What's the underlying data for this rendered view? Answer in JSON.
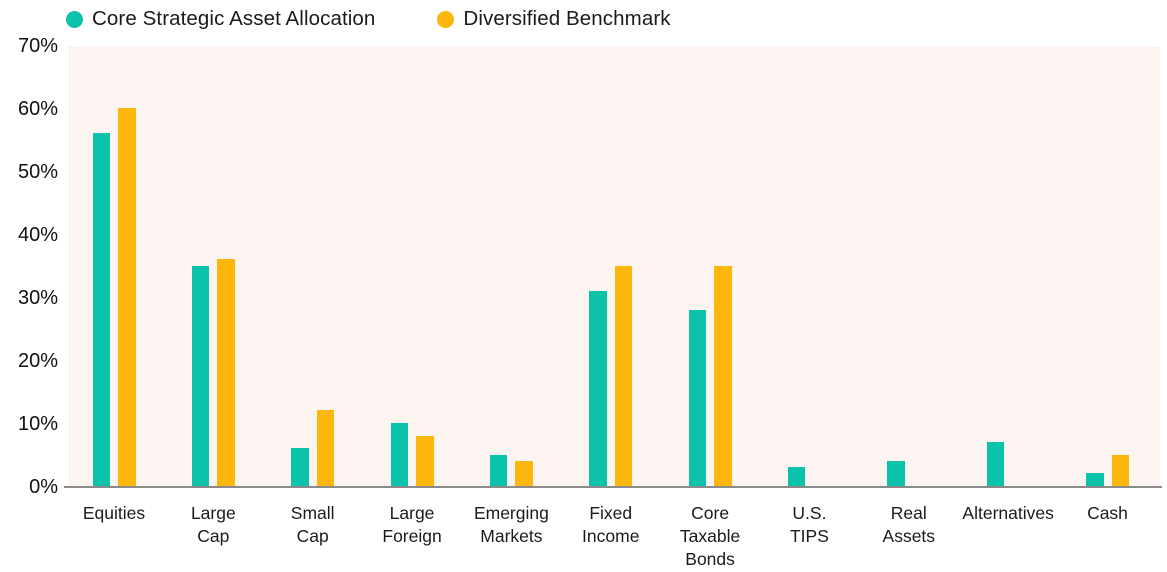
{
  "chart_data": {
    "type": "bar",
    "title": "",
    "xlabel": "",
    "ylabel": "",
    "categories": [
      "Equities",
      "Large\nCap",
      "Small\nCap",
      "Large\nForeign",
      "Emerging\nMarkets",
      "Fixed\nIncome",
      "Core\nTaxable\nBonds",
      "U.S.\nTIPS",
      "Real\nAssets",
      "Alternatives",
      "Cash"
    ],
    "series": [
      {
        "name": "Core Strategic Asset Allocation",
        "color": "#0bc2aa",
        "values": [
          56,
          35,
          6,
          10,
          5,
          31,
          28,
          3,
          4,
          7,
          2
        ]
      },
      {
        "name": "Diversified Benchmark",
        "color": "#fcb60c",
        "values": [
          60,
          36,
          12,
          8,
          4,
          35,
          35,
          null,
          null,
          null,
          5
        ]
      }
    ],
    "ylim": [
      0,
      70
    ],
    "yticks": [
      0,
      10,
      20,
      30,
      40,
      50,
      60,
      70
    ],
    "ytick_suffix": "%",
    "grid": false,
    "legend_position": "top-left",
    "plot_bg_color": "#fbf4f1",
    "axis_line_color": "#8a8a8a",
    "text_color": "#1b1b1b"
  }
}
